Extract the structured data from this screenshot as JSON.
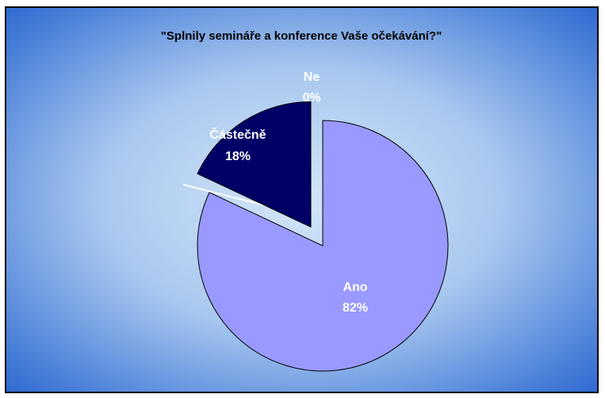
{
  "chart_data": {
    "type": "pie",
    "title": "\"Splnily semináře a konference Vaše očekávání?\"",
    "slices": [
      {
        "label": "Ano",
        "value": 82,
        "value_text": "82%",
        "color": "#9999ff",
        "exploded": false
      },
      {
        "label": "Ne",
        "value": 0,
        "value_text": "0%",
        "color": "#ffffff",
        "exploded": true
      },
      {
        "label": "Částečně",
        "value": 18,
        "value_text": "18%",
        "color": "#000066",
        "exploded": true
      }
    ],
    "start_angle": "12 o'clock, clockwise",
    "legend": "none"
  },
  "colors": {
    "background_center": "#cfe3f6",
    "background_edge": "#1f5fcf",
    "frame_border": "#000000",
    "slice_outline": "#000000"
  }
}
